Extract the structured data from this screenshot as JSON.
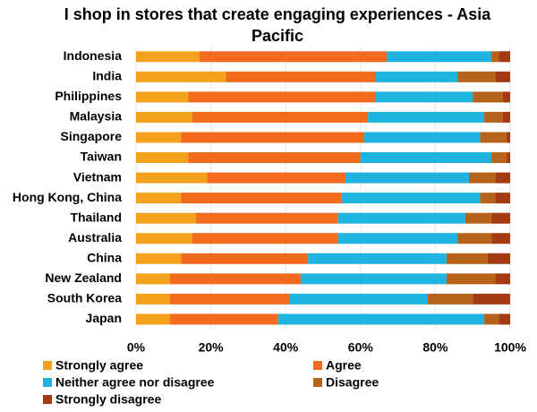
{
  "chart_data": {
    "type": "stacked-barh",
    "title": "I shop in stores that create engaging experiences - Asia Pacific",
    "categories": [
      "Indonesia",
      "India",
      "Philippines",
      "Malaysia",
      "Singapore",
      "Taiwan",
      "Vietnam",
      "Hong Kong, China",
      "Thailand",
      "Australia",
      "China",
      "New Zealand",
      "South Korea",
      "Japan"
    ],
    "series": [
      {
        "name": "Strongly agree",
        "color": "#f4a21e",
        "values": [
          17,
          24,
          14,
          15,
          12,
          14,
          19,
          12,
          16,
          15,
          12,
          9,
          9,
          9
        ]
      },
      {
        "name": "Agree",
        "color": "#f26b1d",
        "values": [
          50,
          40,
          50,
          47,
          49,
          46,
          37,
          43,
          38,
          39,
          34,
          35,
          32,
          29
        ]
      },
      {
        "name": "Neither agree nor disagree",
        "color": "#1fb4e0",
        "values": [
          28,
          22,
          26,
          31,
          31,
          35,
          33,
          37,
          34,
          32,
          37,
          39,
          37,
          55
        ]
      },
      {
        "name": "Disagree",
        "color": "#b8631b",
        "values": [
          2,
          10,
          8,
          5,
          7,
          4,
          7,
          4,
          7,
          9,
          11,
          13,
          12,
          4
        ]
      },
      {
        "name": "Strongly disagree",
        "color": "#a33a12",
        "values": [
          3,
          4,
          2,
          2,
          1,
          1,
          4,
          4,
          5,
          5,
          6,
          4,
          10,
          3
        ]
      }
    ],
    "xlim": [
      0,
      100
    ],
    "xticks": [
      {
        "value": 0,
        "label": "0%"
      },
      {
        "value": 20,
        "label": "20%"
      },
      {
        "value": 40,
        "label": "40%"
      },
      {
        "value": 60,
        "label": "60%"
      },
      {
        "value": 80,
        "label": "80%"
      },
      {
        "value": 100,
        "label": "100%"
      }
    ],
    "grid": true
  }
}
